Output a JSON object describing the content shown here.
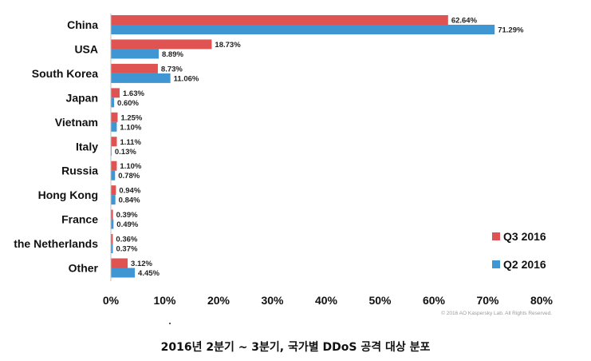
{
  "chart_data": {
    "type": "bar",
    "orientation": "horizontal",
    "categories": [
      "China",
      "USA",
      "South Korea",
      "Japan",
      "Vietnam",
      "Italy",
      "Russia",
      "Hong Kong",
      "France",
      "the Netherlands",
      "Other"
    ],
    "series": [
      {
        "name": "Q3 2016",
        "color": "#e05353",
        "values": [
          62.64,
          18.73,
          8.73,
          1.63,
          1.25,
          1.11,
          1.1,
          0.94,
          0.39,
          0.36,
          3.12
        ],
        "labels": [
          "62.64%",
          "18.73%",
          "8.73%",
          "1.63%",
          "1.25%",
          "1.11%",
          "1.10%",
          "0.94%",
          "0.39%",
          "0.36%",
          "3.12%"
        ]
      },
      {
        "name": "Q2 2016",
        "color": "#3f96d2",
        "values": [
          71.29,
          8.89,
          11.06,
          0.6,
          1.1,
          0.13,
          0.78,
          0.84,
          0.49,
          0.37,
          4.45
        ],
        "labels": [
          "71.29%",
          "8.89%",
          "11.06%",
          "0.60%",
          "1.10%",
          "0.13%",
          "0.78%",
          "0.84%",
          "0.49%",
          "0.37%",
          "4.45%"
        ]
      }
    ],
    "xlim": [
      0,
      80
    ],
    "xticks": [
      0,
      10,
      20,
      30,
      40,
      50,
      60,
      70,
      80
    ],
    "xtick_labels": [
      "0%",
      "10%",
      "20%",
      "30%",
      "40%",
      "50%",
      "60%",
      "70%",
      "80%"
    ],
    "grid": false,
    "legend_position": "right"
  },
  "copyright": "© 2016 AO Kaspersky Lab. All Rights Reserved.",
  "caption": "2016년 2분기 ~ 3분기, 국가별 DDoS 공격 대상 분포"
}
